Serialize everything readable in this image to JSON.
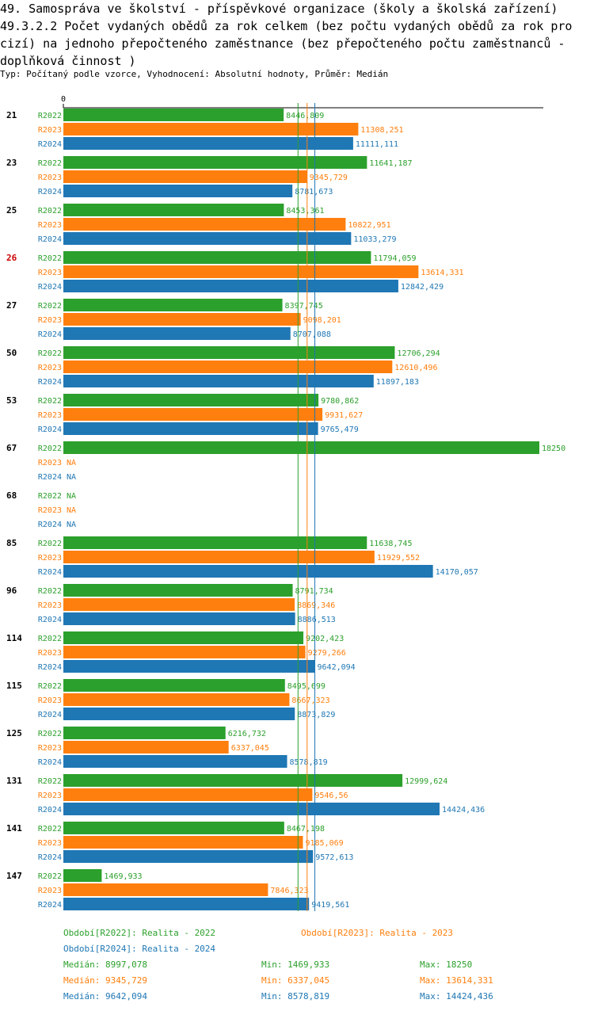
{
  "title": {
    "line1": "49. Samospráva ve školství - příspěvkové organizace (školy a školská zařízení)",
    "line2": "49.3.2.2 Počet vydaných obědů za rok celkem (bez počtu vydaných obědů za rok pro cizí) na jednoho přepočteného zaměstnance (bez přepočteného počtu zaměstnanců - doplňková činnost )"
  },
  "subtitle": "Typ: Počítaný podle vzorce, Vyhodnocení: Absolutní hodnoty, Průměr: Medián",
  "colors": {
    "R2022": "#2ca02c",
    "R2023": "#ff7f0e",
    "R2024": "#1f77b4",
    "highlight": "#cc0000",
    "axis": "#000000"
  },
  "chart_data": {
    "type": "bar",
    "orientation": "horizontal",
    "xlim": [
      0,
      18250
    ],
    "axis_zero_label": "0",
    "highlight_category": "26",
    "categories": [
      "21",
      "23",
      "25",
      "26",
      "27",
      "50",
      "53",
      "67",
      "68",
      "85",
      "96",
      "114",
      "115",
      "125",
      "131",
      "141",
      "147"
    ],
    "series": [
      {
        "name": "R2022",
        "values": [
          8446.809,
          11641.187,
          8453.361,
          11794.059,
          8397.745,
          12706.294,
          9780.862,
          18250,
          null,
          11638.745,
          8791.734,
          9202.423,
          8495.699,
          6216.732,
          12999.624,
          8467.198,
          1469.933
        ],
        "labels": [
          "8446,809",
          "11641,187",
          "8453,361",
          "11794,059",
          "8397,745",
          "12706,294",
          "9780,862",
          "18250",
          "NA",
          "11638,745",
          "8791,734",
          "9202,423",
          "8495,699",
          "6216,732",
          "12999,624",
          "8467,198",
          "1469,933"
        ]
      },
      {
        "name": "R2023",
        "values": [
          11308.251,
          9345.729,
          10822.951,
          13614.331,
          9098.201,
          12610.496,
          9931.627,
          null,
          null,
          11929.552,
          8869.346,
          9279.266,
          8667.323,
          6337.045,
          9546.56,
          9185.069,
          7846.323
        ],
        "labels": [
          "11308,251",
          "9345,729",
          "10822,951",
          "13614,331",
          "9098,201",
          "12610,496",
          "9931,627",
          "NA",
          "NA",
          "11929,552",
          "8869,346",
          "9279,266",
          "8667,323",
          "6337,045",
          "9546,56",
          "9185,069",
          "7846,323"
        ]
      },
      {
        "name": "R2024",
        "values": [
          11111.111,
          8781.673,
          11033.279,
          12842.429,
          8707.088,
          11897.183,
          9765.479,
          null,
          null,
          14170.057,
          8886.513,
          9642.094,
          8873.829,
          8578.819,
          14424.436,
          9572.613,
          9419.561
        ],
        "labels": [
          "11111,111",
          "8781,673",
          "11033,279",
          "12842,429",
          "8707,088",
          "11897,183",
          "9765,479",
          "NA",
          "NA",
          "14170,057",
          "8886,513",
          "9642,094",
          "8873,829",
          "8578,819",
          "14424,436",
          "9572,613",
          "9419,561"
        ]
      }
    ],
    "median_lines": [
      {
        "series": "R2022",
        "value": 8997.078
      },
      {
        "series": "R2023",
        "value": 9345.729
      },
      {
        "series": "R2024",
        "value": 9642.094
      }
    ]
  },
  "legend": {
    "period_r2022": "Období[R2022]: Realita - 2022",
    "period_r2023": "Období[R2023]: Realita - 2023",
    "period_r2024": "Období[R2024]: Realita - 2024",
    "stats": [
      {
        "median": "Medián: 8997,078",
        "min": "Min: 1469,933",
        "max": "Max: 18250"
      },
      {
        "median": "Medián: 9345,729",
        "min": "Min: 6337,045",
        "max": "Max: 13614,331"
      },
      {
        "median": "Medián: 9642,094",
        "min": "Min: 8578,819",
        "max": "Max: 14424,436"
      }
    ]
  }
}
